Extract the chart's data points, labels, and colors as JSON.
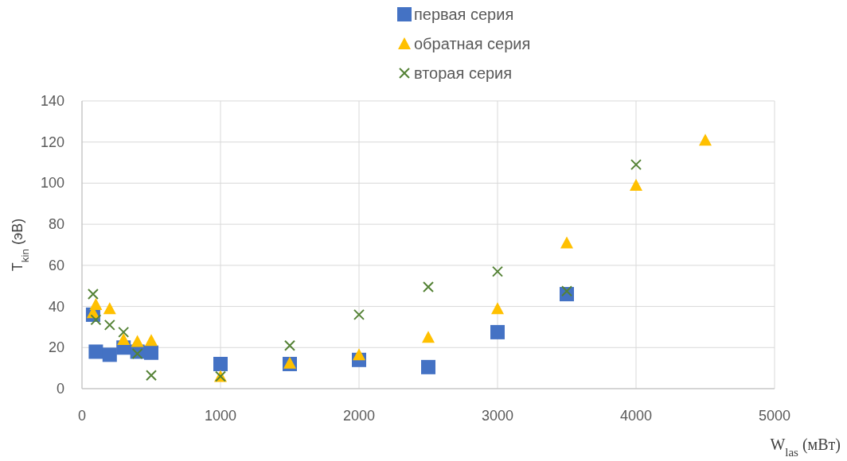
{
  "chart_data": {
    "type": "scatter",
    "xlabel": "W$_{las}$ (мВт)",
    "ylabel": "T$_{kin}$ (эВ)",
    "xlim": [
      0,
      5000
    ],
    "xticks": [
      0,
      1000,
      2000,
      3000,
      4000,
      5000
    ],
    "ylim": [
      0,
      140
    ],
    "yticks": [
      0,
      20,
      40,
      60,
      80,
      100,
      120,
      140
    ],
    "grid": true,
    "legend": "top",
    "series": [
      {
        "name": "первая серия",
        "color": "#4472c4",
        "marker": "square",
        "x": [
          80,
          100,
          200,
          300,
          400,
          500,
          1000,
          1500,
          2000,
          2500,
          3000,
          3500
        ],
        "values": [
          36,
          18,
          16.5,
          20,
          18,
          17.5,
          12,
          12,
          14,
          10.5,
          27.5,
          46
        ]
      },
      {
        "name": "обратная серия",
        "color": "#ffc000",
        "marker": "triangle",
        "x": [
          80,
          100,
          200,
          300,
          400,
          500,
          1000,
          1500,
          2000,
          2500,
          3000,
          3500,
          4000,
          4500
        ],
        "values": [
          37,
          41,
          39,
          24,
          23,
          23.5,
          6,
          12.5,
          16.5,
          25,
          39,
          71,
          99,
          121
        ]
      },
      {
        "name": "вторая серия",
        "color": "#548235",
        "marker": "cross",
        "x": [
          80,
          100,
          200,
          300,
          400,
          500,
          1000,
          1500,
          2000,
          2500,
          3000,
          3500,
          4000
        ],
        "values": [
          46,
          33.5,
          31,
          27.5,
          17,
          6.5,
          6,
          21,
          36,
          49.5,
          57,
          47.5,
          109
        ]
      }
    ]
  }
}
